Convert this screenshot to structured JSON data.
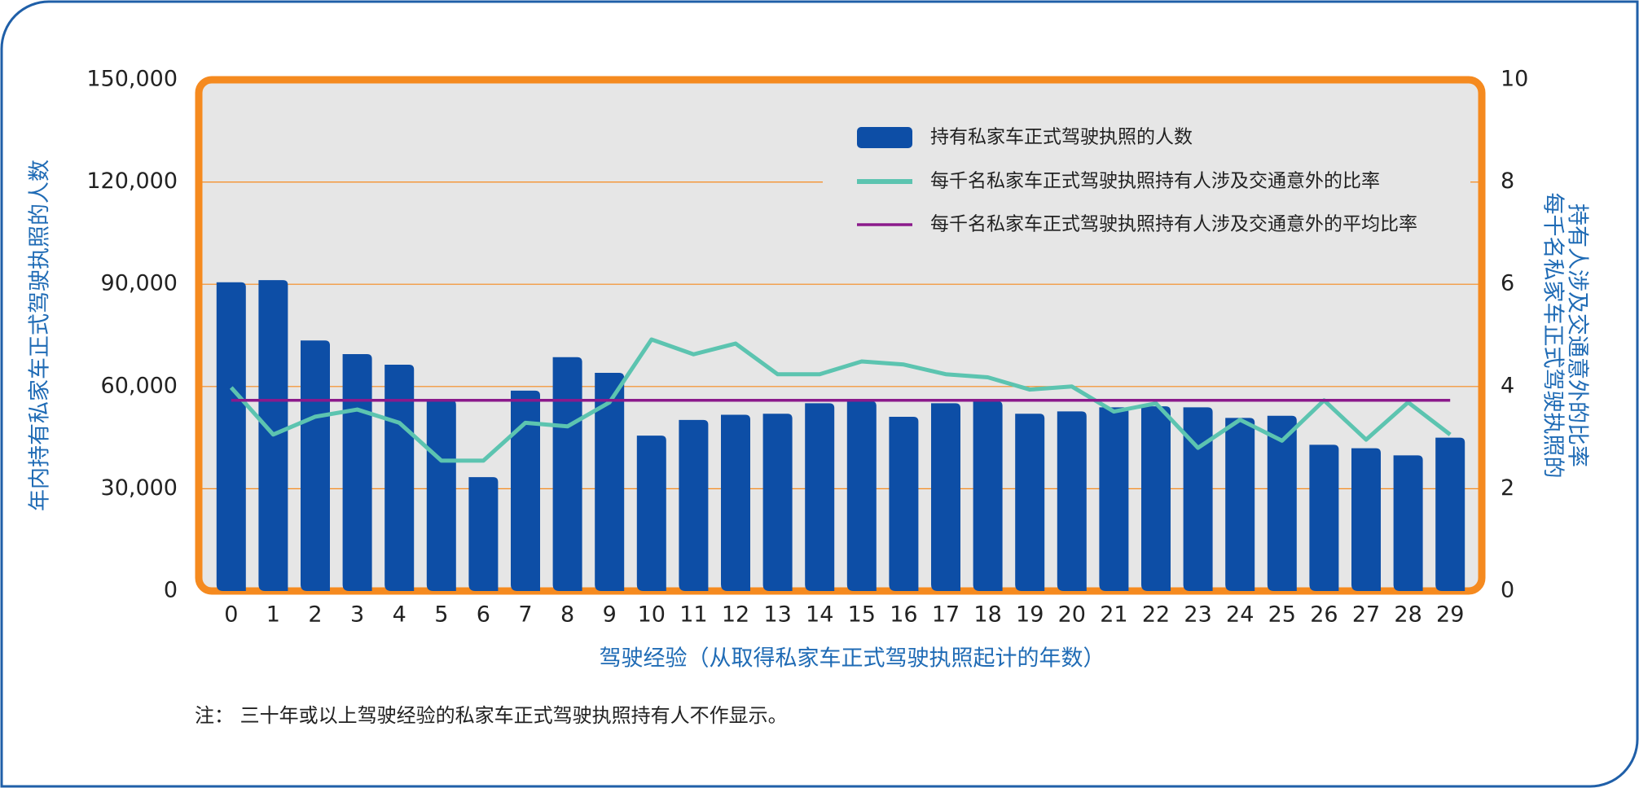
{
  "chart_data": {
    "type": "bar",
    "categories": [
      "0",
      "1",
      "2",
      "3",
      "4",
      "5",
      "6",
      "7",
      "8",
      "9",
      "10",
      "11",
      "12",
      "13",
      "14",
      "15",
      "16",
      "17",
      "18",
      "19",
      "20",
      "21",
      "22",
      "23",
      "24",
      "25",
      "26",
      "27",
      "28",
      "29"
    ],
    "series": [
      {
        "name": "持有私家车正式驾驶执照的人数",
        "type": "bar",
        "axis": "y",
        "color": "#0d4ea6",
        "values": [
          90600,
          91200,
          73500,
          69500,
          66400,
          56000,
          33400,
          58800,
          68600,
          64000,
          45600,
          50200,
          51700,
          52000,
          55100,
          55700,
          51100,
          55100,
          55700,
          52000,
          52700,
          53900,
          54200,
          53900,
          50800,
          51400,
          42900,
          41900,
          39800,
          45000
        ]
      },
      {
        "name": "每千名私家车正式驾驶执照持有人涉及交通意外的比率",
        "type": "line",
        "axis": "y2",
        "color": "#5cc4b0",
        "values": [
          3.98,
          3.06,
          3.41,
          3.55,
          3.29,
          2.55,
          2.55,
          3.29,
          3.22,
          3.69,
          4.92,
          4.63,
          4.84,
          4.24,
          4.24,
          4.49,
          4.43,
          4.24,
          4.18,
          3.94,
          4.0,
          3.51,
          3.67,
          2.8,
          3.35,
          2.94,
          3.73,
          2.96,
          3.69,
          3.06
        ]
      },
      {
        "name": "每千名私家车正式驾驶执照持有人涉及交通意外的平均比率",
        "type": "hline",
        "axis": "y2",
        "color": "#8b1a8b",
        "value": 3.73
      }
    ],
    "xlabel": "驾驶经验（从取得私家车正式驾驶执照起计的年数）",
    "ylabel": "年内持有私家车正式驾驶执照的人数",
    "y2label": [
      "每千名私家车正式驾驶执照的",
      "持有人涉及交通意外的比率"
    ],
    "note": "注： 三十年或以上驾驶经验的私家车正式驾驶执照持有人不作显示。",
    "ylim": [
      0,
      150000
    ],
    "yticks": [
      0,
      {
        "value": 30000,
        "label": "30,000"
      },
      {
        "value": 60000,
        "label": "60,000"
      },
      {
        "value": 90000,
        "label": "90,000"
      },
      {
        "value": 120000,
        "label": "120,000"
      },
      {
        "value": 150000,
        "label": "150,000"
      }
    ],
    "y2lim": [
      0,
      10
    ],
    "y2ticks": [
      0,
      2,
      4,
      6,
      8,
      10
    ],
    "grid": true
  }
}
